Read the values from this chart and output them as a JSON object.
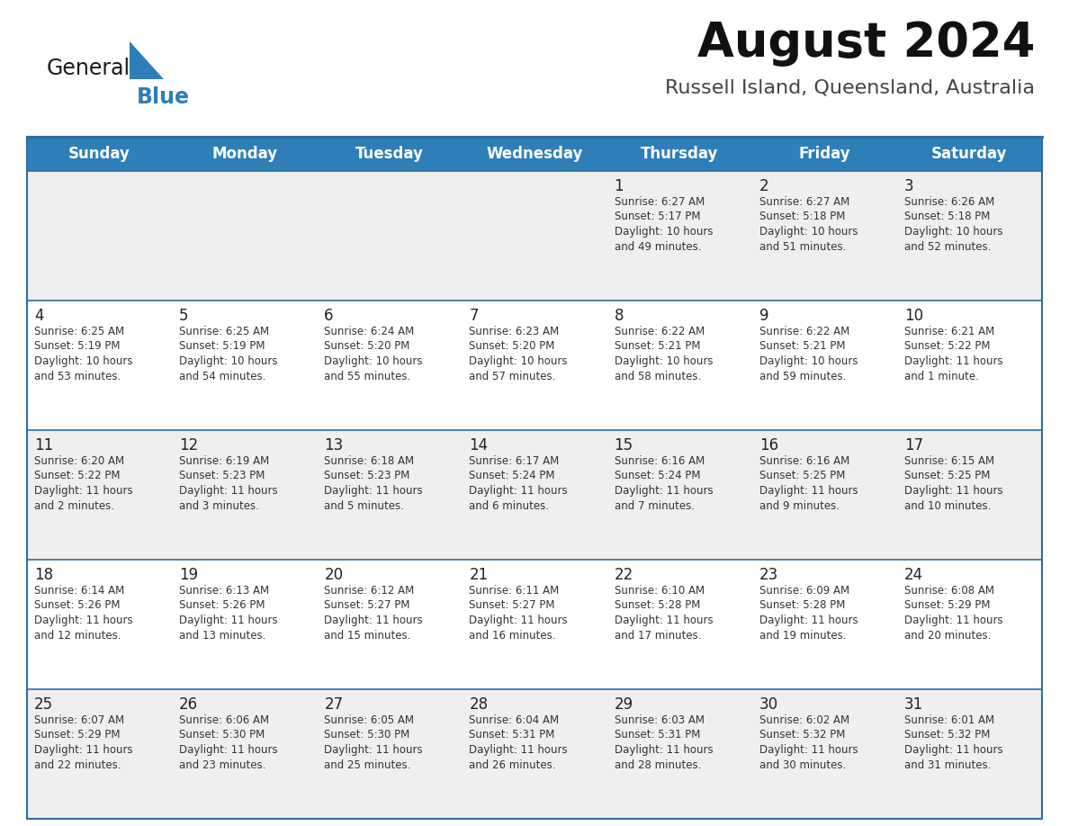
{
  "title": "August 2024",
  "subtitle": "Russell Island, Queensland, Australia",
  "days_of_week": [
    "Sunday",
    "Monday",
    "Tuesday",
    "Wednesday",
    "Thursday",
    "Friday",
    "Saturday"
  ],
  "header_bg": "#2E7EB8",
  "header_text_color": "#FFFFFF",
  "row_bg_odd": "#EFEFEF",
  "row_bg_even": "#FFFFFF",
  "cell_text_color": "#333333",
  "day_num_color": "#222222",
  "divider_color": "#2E6DA4",
  "title_color": "#111111",
  "subtitle_color": "#444444",
  "calendar": [
    [
      {
        "day": 0,
        "sunrise": "",
        "sunset": "",
        "daylight": ""
      },
      {
        "day": 0,
        "sunrise": "",
        "sunset": "",
        "daylight": ""
      },
      {
        "day": 0,
        "sunrise": "",
        "sunset": "",
        "daylight": ""
      },
      {
        "day": 0,
        "sunrise": "",
        "sunset": "",
        "daylight": ""
      },
      {
        "day": 1,
        "sunrise": "Sunrise: 6:27 AM",
        "sunset": "Sunset: 5:17 PM",
        "daylight": "Daylight: 10 hours\nand 49 minutes."
      },
      {
        "day": 2,
        "sunrise": "Sunrise: 6:27 AM",
        "sunset": "Sunset: 5:18 PM",
        "daylight": "Daylight: 10 hours\nand 51 minutes."
      },
      {
        "day": 3,
        "sunrise": "Sunrise: 6:26 AM",
        "sunset": "Sunset: 5:18 PM",
        "daylight": "Daylight: 10 hours\nand 52 minutes."
      }
    ],
    [
      {
        "day": 4,
        "sunrise": "Sunrise: 6:25 AM",
        "sunset": "Sunset: 5:19 PM",
        "daylight": "Daylight: 10 hours\nand 53 minutes."
      },
      {
        "day": 5,
        "sunrise": "Sunrise: 6:25 AM",
        "sunset": "Sunset: 5:19 PM",
        "daylight": "Daylight: 10 hours\nand 54 minutes."
      },
      {
        "day": 6,
        "sunrise": "Sunrise: 6:24 AM",
        "sunset": "Sunset: 5:20 PM",
        "daylight": "Daylight: 10 hours\nand 55 minutes."
      },
      {
        "day": 7,
        "sunrise": "Sunrise: 6:23 AM",
        "sunset": "Sunset: 5:20 PM",
        "daylight": "Daylight: 10 hours\nand 57 minutes."
      },
      {
        "day": 8,
        "sunrise": "Sunrise: 6:22 AM",
        "sunset": "Sunset: 5:21 PM",
        "daylight": "Daylight: 10 hours\nand 58 minutes."
      },
      {
        "day": 9,
        "sunrise": "Sunrise: 6:22 AM",
        "sunset": "Sunset: 5:21 PM",
        "daylight": "Daylight: 10 hours\nand 59 minutes."
      },
      {
        "day": 10,
        "sunrise": "Sunrise: 6:21 AM",
        "sunset": "Sunset: 5:22 PM",
        "daylight": "Daylight: 11 hours\nand 1 minute."
      }
    ],
    [
      {
        "day": 11,
        "sunrise": "Sunrise: 6:20 AM",
        "sunset": "Sunset: 5:22 PM",
        "daylight": "Daylight: 11 hours\nand 2 minutes."
      },
      {
        "day": 12,
        "sunrise": "Sunrise: 6:19 AM",
        "sunset": "Sunset: 5:23 PM",
        "daylight": "Daylight: 11 hours\nand 3 minutes."
      },
      {
        "day": 13,
        "sunrise": "Sunrise: 6:18 AM",
        "sunset": "Sunset: 5:23 PM",
        "daylight": "Daylight: 11 hours\nand 5 minutes."
      },
      {
        "day": 14,
        "sunrise": "Sunrise: 6:17 AM",
        "sunset": "Sunset: 5:24 PM",
        "daylight": "Daylight: 11 hours\nand 6 minutes."
      },
      {
        "day": 15,
        "sunrise": "Sunrise: 6:16 AM",
        "sunset": "Sunset: 5:24 PM",
        "daylight": "Daylight: 11 hours\nand 7 minutes."
      },
      {
        "day": 16,
        "sunrise": "Sunrise: 6:16 AM",
        "sunset": "Sunset: 5:25 PM",
        "daylight": "Daylight: 11 hours\nand 9 minutes."
      },
      {
        "day": 17,
        "sunrise": "Sunrise: 6:15 AM",
        "sunset": "Sunset: 5:25 PM",
        "daylight": "Daylight: 11 hours\nand 10 minutes."
      }
    ],
    [
      {
        "day": 18,
        "sunrise": "Sunrise: 6:14 AM",
        "sunset": "Sunset: 5:26 PM",
        "daylight": "Daylight: 11 hours\nand 12 minutes."
      },
      {
        "day": 19,
        "sunrise": "Sunrise: 6:13 AM",
        "sunset": "Sunset: 5:26 PM",
        "daylight": "Daylight: 11 hours\nand 13 minutes."
      },
      {
        "day": 20,
        "sunrise": "Sunrise: 6:12 AM",
        "sunset": "Sunset: 5:27 PM",
        "daylight": "Daylight: 11 hours\nand 15 minutes."
      },
      {
        "day": 21,
        "sunrise": "Sunrise: 6:11 AM",
        "sunset": "Sunset: 5:27 PM",
        "daylight": "Daylight: 11 hours\nand 16 minutes."
      },
      {
        "day": 22,
        "sunrise": "Sunrise: 6:10 AM",
        "sunset": "Sunset: 5:28 PM",
        "daylight": "Daylight: 11 hours\nand 17 minutes."
      },
      {
        "day": 23,
        "sunrise": "Sunrise: 6:09 AM",
        "sunset": "Sunset: 5:28 PM",
        "daylight": "Daylight: 11 hours\nand 19 minutes."
      },
      {
        "day": 24,
        "sunrise": "Sunrise: 6:08 AM",
        "sunset": "Sunset: 5:29 PM",
        "daylight": "Daylight: 11 hours\nand 20 minutes."
      }
    ],
    [
      {
        "day": 25,
        "sunrise": "Sunrise: 6:07 AM",
        "sunset": "Sunset: 5:29 PM",
        "daylight": "Daylight: 11 hours\nand 22 minutes."
      },
      {
        "day": 26,
        "sunrise": "Sunrise: 6:06 AM",
        "sunset": "Sunset: 5:30 PM",
        "daylight": "Daylight: 11 hours\nand 23 minutes."
      },
      {
        "day": 27,
        "sunrise": "Sunrise: 6:05 AM",
        "sunset": "Sunset: 5:30 PM",
        "daylight": "Daylight: 11 hours\nand 25 minutes."
      },
      {
        "day": 28,
        "sunrise": "Sunrise: 6:04 AM",
        "sunset": "Sunset: 5:31 PM",
        "daylight": "Daylight: 11 hours\nand 26 minutes."
      },
      {
        "day": 29,
        "sunrise": "Sunrise: 6:03 AM",
        "sunset": "Sunset: 5:31 PM",
        "daylight": "Daylight: 11 hours\nand 28 minutes."
      },
      {
        "day": 30,
        "sunrise": "Sunrise: 6:02 AM",
        "sunset": "Sunset: 5:32 PM",
        "daylight": "Daylight: 11 hours\nand 30 minutes."
      },
      {
        "day": 31,
        "sunrise": "Sunrise: 6:01 AM",
        "sunset": "Sunset: 5:32 PM",
        "daylight": "Daylight: 11 hours\nand 31 minutes."
      }
    ]
  ],
  "logo_color_general": "#1a1a1a",
  "logo_color_blue": "#2E7EB8",
  "logo_fontsize_general": 17,
  "logo_fontsize_blue": 17,
  "title_fontsize": 38,
  "subtitle_fontsize": 16,
  "header_fontsize": 12,
  "daynum_fontsize": 12,
  "cell_fontsize": 8.5
}
